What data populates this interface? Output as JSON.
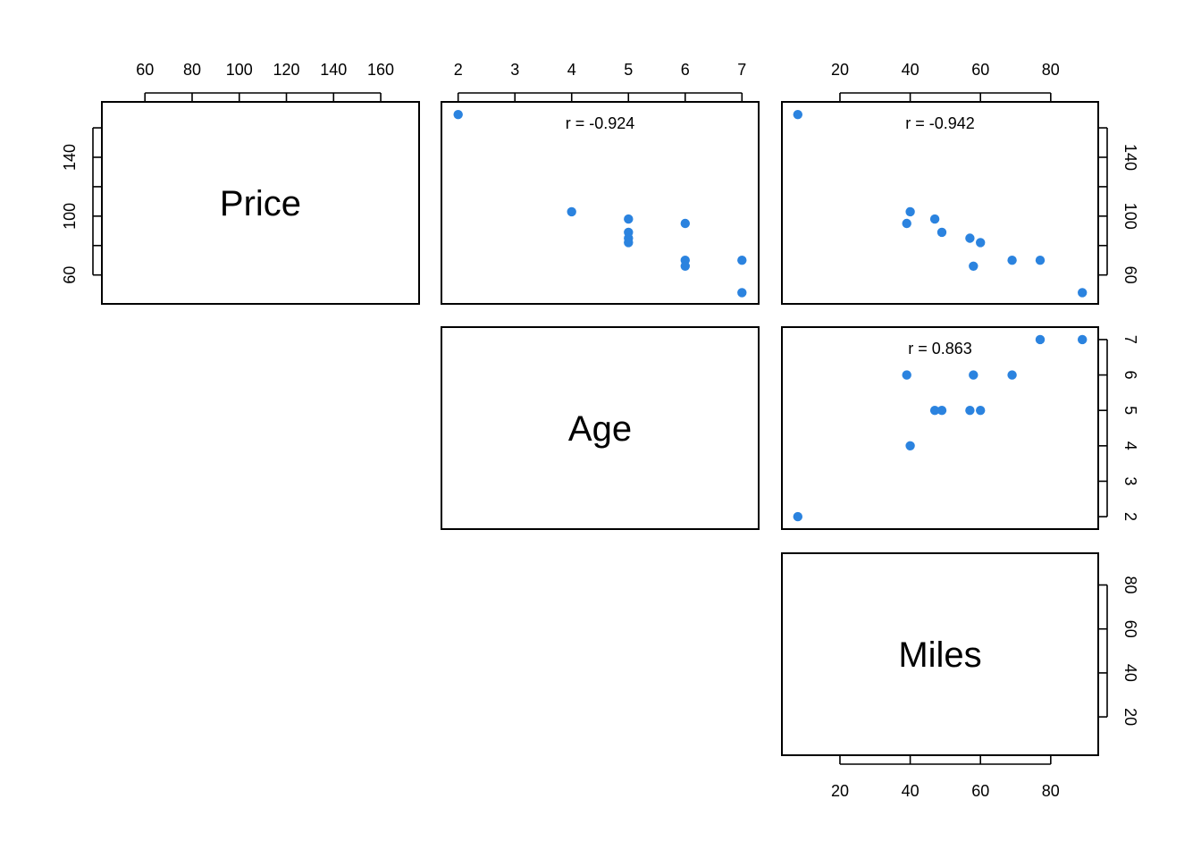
{
  "chart_data": {
    "type": "scatter",
    "variables": [
      "Price",
      "Age",
      "Miles"
    ],
    "point_color": "#2B83DF",
    "observations": [
      {
        "Price": 169,
        "Age": 2,
        "Miles": 8
      },
      {
        "Price": 103,
        "Age": 4,
        "Miles": 40
      },
      {
        "Price": 98,
        "Age": 5,
        "Miles": 47
      },
      {
        "Price": 89,
        "Age": 5,
        "Miles": 49
      },
      {
        "Price": 85,
        "Age": 5,
        "Miles": 57
      },
      {
        "Price": 82,
        "Age": 5,
        "Miles": 60
      },
      {
        "Price": 95,
        "Age": 6,
        "Miles": 39
      },
      {
        "Price": 70,
        "Age": 6,
        "Miles": 69
      },
      {
        "Price": 66,
        "Age": 6,
        "Miles": 58
      },
      {
        "Price": 70,
        "Age": 7,
        "Miles": 77
      },
      {
        "Price": 48,
        "Age": 7,
        "Miles": 89
      }
    ],
    "axes": {
      "Price": {
        "lim": [
          44,
          174
        ],
        "ticks": [
          60,
          80,
          100,
          120,
          140,
          160
        ],
        "ticks_vertical": [
          60,
          100,
          140
        ],
        "minor_ticks_vertical": [
          80,
          120,
          160
        ]
      },
      "Age": {
        "lim": [
          1.8,
          7.2
        ],
        "ticks": [
          2,
          3,
          4,
          5,
          6,
          7
        ]
      },
      "Miles": {
        "lim": [
          5,
          92
        ],
        "ticks": [
          20,
          40,
          60,
          80
        ]
      }
    },
    "correlations": [
      {
        "row": "Price",
        "col": "Age",
        "label": "r = -0.924"
      },
      {
        "row": "Price",
        "col": "Miles",
        "label": "r = -0.942"
      },
      {
        "row": "Age",
        "col": "Miles",
        "label": "r = 0.863"
      }
    ],
    "grid": false
  }
}
